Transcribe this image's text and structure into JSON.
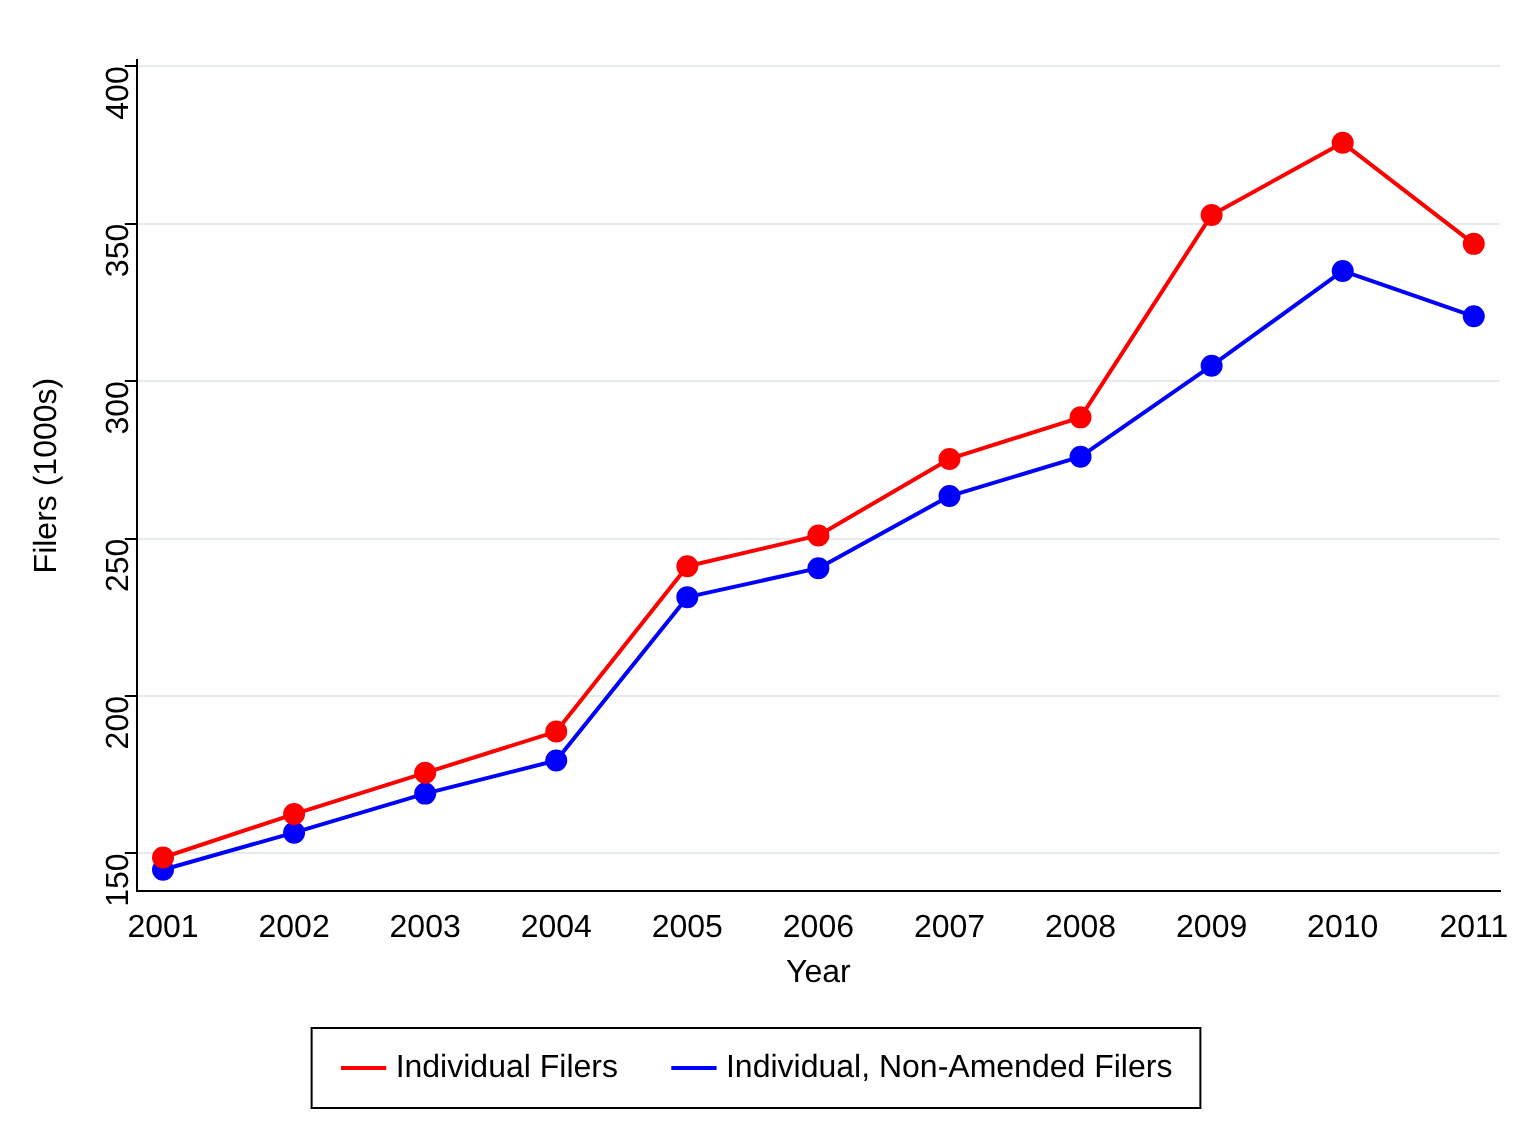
{
  "chart_data": {
    "type": "line",
    "xlabel": "Year",
    "ylabel": "Filers (1000s)",
    "x": [
      2001,
      2002,
      2003,
      2004,
      2005,
      2006,
      2007,
      2008,
      2009,
      2010,
      2011
    ],
    "xlim": [
      2000.8,
      2011.2
    ],
    "xticks": [
      2001,
      2002,
      2003,
      2004,
      2005,
      2006,
      2007,
      2008,
      2009,
      2010,
      2011
    ],
    "ylim": [
      138,
      402
    ],
    "yticks": [
      150,
      200,
      250,
      300,
      350,
      400
    ],
    "grid": "y",
    "legend": "bottom",
    "marker": "circle",
    "line_style": "solid",
    "series": [
      {
        "name": "Individual Filers",
        "color": "#ff0000",
        "values": [
          148.7,
          162.5,
          175.6,
          188.7,
          241.2,
          251,
          275.3,
          288.5,
          352.8,
          375.7,
          343.6
        ]
      },
      {
        "name": "Individual, Non-Amended Filers",
        "color": "#0000ff",
        "values": [
          144.8,
          156.6,
          169,
          179.5,
          231.4,
          240.6,
          263.5,
          276,
          304.9,
          335,
          320.6
        ]
      }
    ]
  }
}
